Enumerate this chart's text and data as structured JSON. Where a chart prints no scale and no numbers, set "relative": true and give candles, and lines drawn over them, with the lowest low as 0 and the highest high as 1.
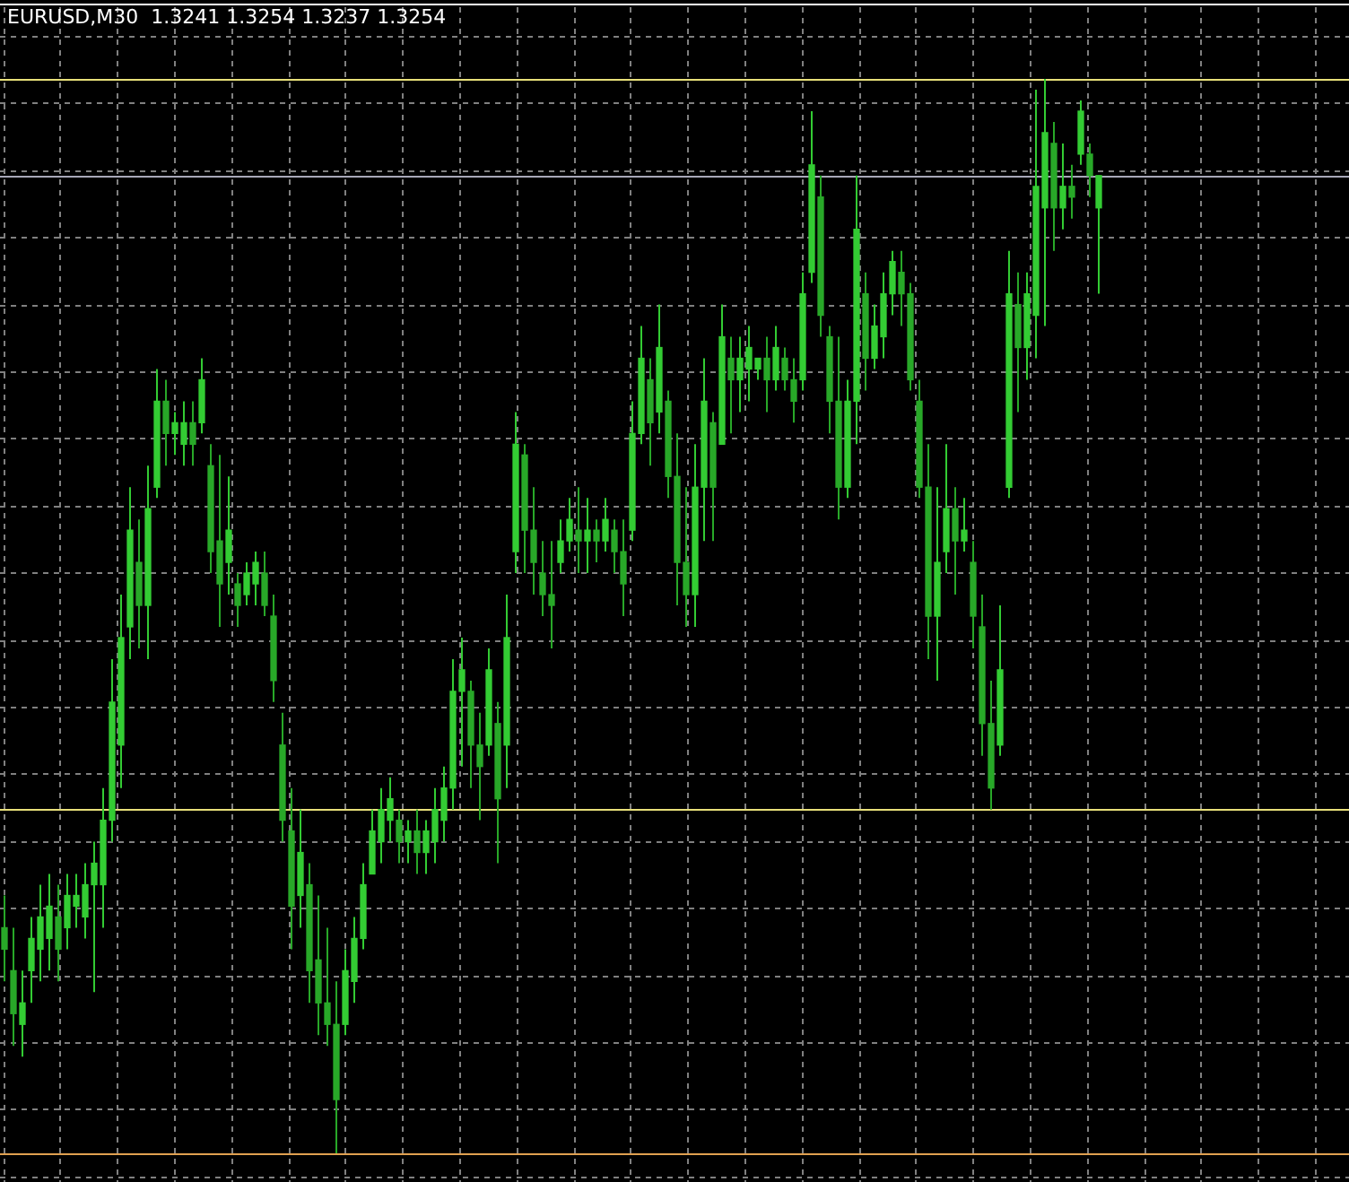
{
  "chart_data": {
    "type": "candlestick",
    "title": "EURUSD,M30  1.3241 1.3254 1.3237 1.3254",
    "relative": true,
    "grid": true,
    "colors": [
      "#28a828",
      "#28a828",
      "#33cc33",
      "#33cc33",
      "#33cc33",
      "#33cc33",
      "#28a828",
      "#33cc33",
      "#33cc33",
      "#33cc33",
      "#33cc33",
      "#33cc33",
      "#33cc33",
      "#33cc33",
      "#33cc33",
      "#28a828",
      "#33cc33",
      "#33cc33",
      "#28a828",
      "#33cc33",
      "#33cc33",
      "#28a828",
      "#33cc33",
      "#28a828",
      "#28a828",
      "#33cc33",
      "#28a828",
      "#33cc33",
      "#33cc33",
      "#28a828",
      "#28a828",
      "#28a828",
      "#28a828",
      "#33cc33",
      "#28a828",
      "#28a828",
      "#28a828",
      "#28a828",
      "#33cc33",
      "#33cc33",
      "#33cc33",
      "#33cc33",
      "#33cc33",
      "#33cc33",
      "#28a828",
      "#33cc33",
      "#28a828",
      "#33cc33",
      "#33cc33",
      "#33cc33",
      "#33cc33",
      "#33cc33",
      "#28a828",
      "#28a828",
      "#33cc33",
      "#28a828",
      "#33cc33",
      "#33cc33",
      "#28a828",
      "#28a828",
      "#28a828",
      "#28a828",
      "#33cc33",
      "#33cc33",
      "#28a828",
      "#33cc33",
      "#28a828",
      "#33cc33",
      "#28a828",
      "#28a828",
      "#33cc33",
      "#33cc33",
      "#28a828",
      "#33cc33",
      "#28a828",
      "#28a828",
      "#28a828",
      "#33cc33",
      "#33cc33",
      "#28a828",
      "#33cc33",
      "#28a828",
      "#33cc33",
      "#33cc33",
      "#33cc33",
      "#28a828",
      "#33cc33",
      "#28a828",
      "#28a828",
      "#33cc33",
      "#33cc33",
      "#28a828",
      "#28a828",
      "#28a828",
      "#33cc33",
      "#33cc33",
      "#28a828",
      "#33cc33",
      "#33cc33",
      "#33cc33",
      "#28a828",
      "#28a828",
      "#28a828",
      "#28a828",
      "#33cc33",
      "#33cc33",
      "#28a828",
      "#33cc33",
      "#28a828",
      "#28a828",
      "#28a828",
      "#33cc33",
      "#33cc33",
      "#28a828",
      "#33cc33",
      "#33cc33",
      "#33cc33",
      "#28a828",
      "#33cc33",
      "#28a828",
      "#33cc33",
      "#28a828",
      "#33cc33"
    ],
    "categories": [
      null,
      null,
      null,
      null,
      null,
      null,
      null,
      null,
      null,
      null,
      null,
      null,
      null,
      null,
      null,
      null,
      null,
      null,
      null,
      null,
      null,
      null,
      null,
      null,
      null,
      null,
      null,
      null,
      null,
      null,
      null,
      null,
      null,
      null,
      null,
      null,
      null,
      null,
      null,
      null,
      null,
      null,
      null,
      null,
      null,
      null,
      null,
      null,
      null,
      null,
      null,
      null,
      null,
      null,
      null,
      null,
      null,
      null,
      null,
      null,
      null,
      null,
      null,
      null,
      null,
      null,
      null,
      null,
      null,
      null,
      null,
      null,
      null,
      null,
      null,
      null,
      null,
      null,
      null,
      null,
      null,
      null,
      null,
      null,
      null,
      null,
      null,
      null,
      null,
      null,
      null,
      null,
      null,
      null,
      null,
      null,
      null,
      null,
      null,
      null,
      null,
      null,
      null,
      null,
      null,
      null,
      null,
      null,
      null,
      null,
      null,
      null,
      null,
      null,
      null,
      null,
      null,
      null,
      null,
      null,
      null,
      null,
      null
    ],
    "ohlc": [
      [
        0.21,
        0.24,
        0.16,
        0.19
      ],
      [
        0.17,
        0.21,
        0.1,
        0.13
      ],
      [
        0.12,
        0.17,
        0.09,
        0.14
      ],
      [
        0.17,
        0.22,
        0.14,
        0.2
      ],
      [
        0.19,
        0.25,
        0.16,
        0.22
      ],
      [
        0.2,
        0.26,
        0.17,
        0.23
      ],
      [
        0.22,
        0.25,
        0.16,
        0.19
      ],
      [
        0.21,
        0.26,
        0.19,
        0.24
      ],
      [
        0.23,
        0.26,
        0.21,
        0.24
      ],
      [
        0.22,
        0.27,
        0.2,
        0.25
      ],
      [
        0.25,
        0.29,
        0.15,
        0.27
      ],
      [
        0.25,
        0.34,
        0.21,
        0.31
      ],
      [
        0.31,
        0.46,
        0.29,
        0.42
      ],
      [
        0.38,
        0.52,
        0.34,
        0.48
      ],
      [
        0.49,
        0.62,
        0.46,
        0.58
      ],
      [
        0.55,
        0.59,
        0.47,
        0.51
      ],
      [
        0.51,
        0.64,
        0.46,
        0.6
      ],
      [
        0.62,
        0.73,
        0.61,
        0.7
      ],
      [
        0.7,
        0.72,
        0.64,
        0.67
      ],
      [
        0.67,
        0.69,
        0.65,
        0.68
      ],
      [
        0.66,
        0.7,
        0.64,
        0.68
      ],
      [
        0.68,
        0.7,
        0.64,
        0.66
      ],
      [
        0.68,
        0.74,
        0.67,
        0.72
      ],
      [
        0.64,
        0.66,
        0.54,
        0.56
      ],
      [
        0.57,
        0.65,
        0.49,
        0.53
      ],
      [
        0.55,
        0.63,
        0.52,
        0.58
      ],
      [
        0.53,
        0.54,
        0.49,
        0.51
      ],
      [
        0.52,
        0.55,
        0.51,
        0.54
      ],
      [
        0.53,
        0.56,
        0.51,
        0.55
      ],
      [
        0.54,
        0.56,
        0.5,
        0.51
      ],
      [
        0.5,
        0.52,
        0.42,
        0.44
      ],
      [
        0.38,
        0.41,
        0.29,
        0.31
      ],
      [
        0.3,
        0.34,
        0.19,
        0.23
      ],
      [
        0.24,
        0.32,
        0.21,
        0.28
      ],
      [
        0.25,
        0.27,
        0.14,
        0.17
      ],
      [
        0.18,
        0.24,
        0.11,
        0.14
      ],
      [
        0.14,
        0.21,
        0.1,
        0.12
      ],
      [
        0.12,
        0.16,
        0.0,
        0.05
      ],
      [
        0.12,
        0.19,
        0.11,
        0.17
      ],
      [
        0.16,
        0.22,
        0.14,
        0.2
      ],
      [
        0.2,
        0.27,
        0.19,
        0.25
      ],
      [
        0.26,
        0.32,
        0.26,
        0.3
      ],
      [
        0.29,
        0.34,
        0.27,
        0.32
      ],
      [
        0.31,
        0.35,
        0.29,
        0.33
      ],
      [
        0.31,
        0.32,
        0.27,
        0.29
      ],
      [
        0.29,
        0.31,
        0.27,
        0.3
      ],
      [
        0.3,
        0.32,
        0.26,
        0.28
      ],
      [
        0.28,
        0.31,
        0.26,
        0.3
      ],
      [
        0.29,
        0.34,
        0.27,
        0.32
      ],
      [
        0.31,
        0.36,
        0.29,
        0.34
      ],
      [
        0.34,
        0.46,
        0.32,
        0.43
      ],
      [
        0.43,
        0.48,
        0.36,
        0.45
      ],
      [
        0.43,
        0.44,
        0.34,
        0.38
      ],
      [
        0.38,
        0.41,
        0.31,
        0.36
      ],
      [
        0.38,
        0.47,
        0.37,
        0.45
      ],
      [
        0.4,
        0.42,
        0.27,
        0.33
      ],
      [
        0.38,
        0.52,
        0.34,
        0.48
      ],
      [
        0.56,
        0.69,
        0.54,
        0.66
      ],
      [
        0.65,
        0.66,
        0.54,
        0.58
      ],
      [
        0.58,
        0.62,
        0.52,
        0.55
      ],
      [
        0.54,
        0.57,
        0.5,
        0.52
      ],
      [
        0.52,
        0.57,
        0.47,
        0.51
      ],
      [
        0.55,
        0.59,
        0.54,
        0.57
      ],
      [
        0.57,
        0.61,
        0.56,
        0.59
      ],
      [
        0.58,
        0.62,
        0.54,
        0.57
      ],
      [
        0.57,
        0.61,
        0.54,
        0.58
      ],
      [
        0.58,
        0.59,
        0.55,
        0.57
      ],
      [
        0.57,
        0.61,
        0.56,
        0.59
      ],
      [
        0.58,
        0.59,
        0.54,
        0.56
      ],
      [
        0.56,
        0.59,
        0.5,
        0.53
      ],
      [
        0.58,
        0.7,
        0.57,
        0.67
      ],
      [
        0.67,
        0.77,
        0.66,
        0.74
      ],
      [
        0.72,
        0.74,
        0.64,
        0.68
      ],
      [
        0.69,
        0.79,
        0.67,
        0.75
      ],
      [
        0.7,
        0.71,
        0.61,
        0.63
      ],
      [
        0.63,
        0.67,
        0.51,
        0.55
      ],
      [
        0.55,
        0.62,
        0.49,
        0.52
      ],
      [
        0.52,
        0.66,
        0.49,
        0.62
      ],
      [
        0.62,
        0.74,
        0.57,
        0.7
      ],
      [
        0.68,
        0.69,
        0.57,
        0.62
      ],
      [
        0.66,
        0.79,
        0.66,
        0.76
      ],
      [
        0.74,
        0.76,
        0.67,
        0.72
      ],
      [
        0.72,
        0.76,
        0.69,
        0.74
      ],
      [
        0.73,
        0.77,
        0.7,
        0.75
      ],
      [
        0.73,
        0.74,
        0.72,
        0.74
      ],
      [
        0.74,
        0.76,
        0.69,
        0.72
      ],
      [
        0.72,
        0.77,
        0.71,
        0.75
      ],
      [
        0.74,
        0.75,
        0.71,
        0.72
      ],
      [
        0.72,
        0.74,
        0.68,
        0.7
      ],
      [
        0.72,
        0.82,
        0.71,
        0.8
      ],
      [
        0.82,
        0.97,
        0.81,
        0.92
      ],
      [
        0.89,
        0.91,
        0.76,
        0.78
      ],
      [
        0.76,
        0.77,
        0.67,
        0.7
      ],
      [
        0.7,
        0.76,
        0.59,
        0.62
      ],
      [
        0.62,
        0.72,
        0.61,
        0.7
      ],
      [
        0.7,
        0.91,
        0.66,
        0.86
      ],
      [
        0.8,
        0.82,
        0.71,
        0.74
      ],
      [
        0.74,
        0.79,
        0.73,
        0.77
      ],
      [
        0.76,
        0.82,
        0.74,
        0.8
      ],
      [
        0.8,
        0.84,
        0.78,
        0.83
      ],
      [
        0.82,
        0.84,
        0.77,
        0.8
      ],
      [
        0.8,
        0.81,
        0.71,
        0.72
      ],
      [
        0.7,
        0.72,
        0.61,
        0.62
      ],
      [
        0.62,
        0.66,
        0.46,
        0.5
      ],
      [
        0.5,
        0.62,
        0.44,
        0.55
      ],
      [
        0.56,
        0.66,
        0.54,
        0.6
      ],
      [
        0.6,
        0.62,
        0.52,
        0.57
      ],
      [
        0.57,
        0.61,
        0.56,
        0.58
      ],
      [
        0.55,
        0.57,
        0.47,
        0.5
      ],
      [
        0.49,
        0.52,
        0.37,
        0.4
      ],
      [
        0.4,
        0.44,
        0.32,
        0.34
      ],
      [
        0.38,
        0.51,
        0.37,
        0.45
      ],
      [
        0.62,
        0.84,
        0.61,
        0.8
      ],
      [
        0.79,
        0.82,
        0.69,
        0.75
      ],
      [
        0.75,
        0.82,
        0.72,
        0.8
      ],
      [
        0.78,
        0.99,
        0.74,
        0.9
      ],
      [
        0.88,
        1.0,
        0.77,
        0.95
      ],
      [
        0.94,
        0.96,
        0.84,
        0.88
      ],
      [
        0.88,
        0.94,
        0.86,
        0.9
      ],
      [
        0.9,
        0.92,
        0.87,
        0.89
      ],
      [
        0.93,
        0.98,
        0.92,
        0.97
      ],
      [
        0.93,
        0.94,
        0.89,
        0.91
      ],
      [
        0.88,
        0.91,
        0.8,
        0.91
      ]
    ],
    "ref_lines": [
      {
        "axis": "y",
        "value": 1.0,
        "color": "#e8e07a"
      },
      {
        "axis": "y",
        "value": 0.91,
        "color": "#a8a8b8"
      },
      {
        "axis": "y",
        "value": 0.32,
        "color": "#e8e07a"
      },
      {
        "axis": "y",
        "value": 0,
        "color": "#e0a050"
      }
    ]
  }
}
